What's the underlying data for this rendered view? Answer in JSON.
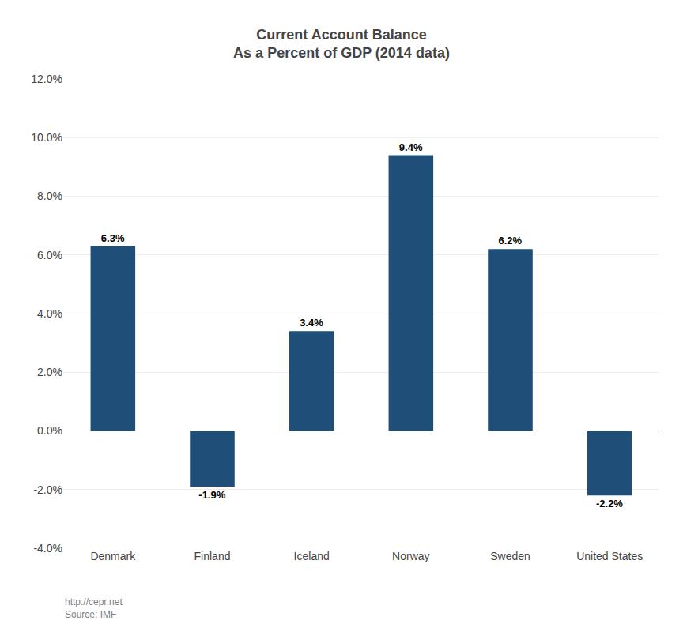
{
  "chart_data": {
    "type": "bar",
    "title": "Current Account Balance\nAs a Percent of GDP (2014 data)",
    "categories": [
      "Denmark",
      "Finland",
      "Iceland",
      "Norway",
      "Sweden",
      "United States"
    ],
    "values": [
      6.3,
      -1.9,
      3.4,
      9.4,
      6.2,
      -2.2
    ],
    "value_labels": [
      "6.3%",
      "-1.9%",
      "3.4%",
      "9.4%",
      "6.2%",
      "-2.2%"
    ],
    "data_labels": true,
    "color": "#1F4E79",
    "ylim": [
      -4.0,
      12.0
    ],
    "yticks": [
      {
        "value": -4.0,
        "label": "-4.0%"
      },
      {
        "value": -2.0,
        "label": "-2.0%"
      },
      {
        "value": 0.0,
        "label": "0.0%"
      },
      {
        "value": 2.0,
        "label": "2.0%"
      },
      {
        "value": 4.0,
        "label": "4.0%"
      },
      {
        "value": 6.0,
        "label": "6.0%"
      },
      {
        "value": 8.0,
        "label": "8.0%"
      },
      {
        "value": 10.0,
        "label": "10.0%"
      },
      {
        "value": 12.0,
        "label": "12.0%"
      }
    ],
    "grid": true,
    "annotations": [
      {
        "text": "http://cepr.net\nSource: IMF",
        "color": "#7F7F7F"
      }
    ]
  }
}
